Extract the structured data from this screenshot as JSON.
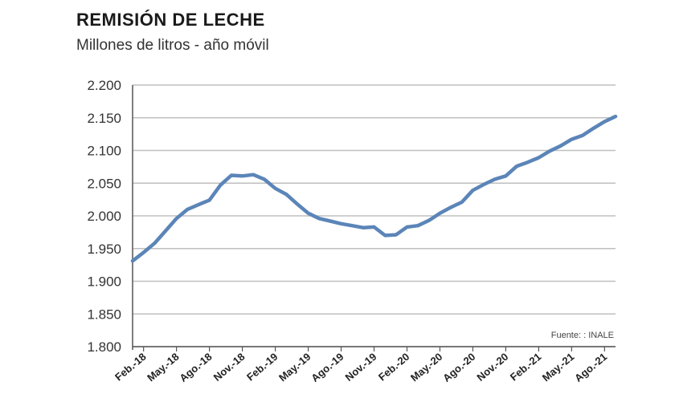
{
  "title": "REMISIÓN DE LECHE",
  "subtitle": "Millones de litros - año móvil",
  "source": "Fuente: : INALE",
  "colors": {
    "line": "#5b85b8",
    "grid": "#bfbfbf",
    "axis": "#555555"
  },
  "chart_data": {
    "type": "line",
    "title": "REMISIÓN DE LECHE",
    "subtitle": "Millones de litros - año móvil",
    "xlabel": "",
    "ylabel": "",
    "ylim": [
      1800,
      2200
    ],
    "yticks": [
      1800,
      1850,
      1900,
      1950,
      2000,
      2050,
      2100,
      2150,
      2200
    ],
    "ytick_labels": [
      "1.800",
      "1.850",
      "1.900",
      "1.950",
      "2.000",
      "2.050",
      "2.100",
      "2.150",
      "2.200"
    ],
    "grid": true,
    "x": [
      "Ene-18",
      "Feb-18",
      "Mar-18",
      "Abr-18",
      "May.-18",
      "Jun-18",
      "Jul-18",
      "Ago.-18",
      "Sep-18",
      "Oct-18",
      "Nov.-18",
      "Dic-18",
      "Ene-19",
      "Feb.-19",
      "Mar-19",
      "Abr-19",
      "May.-19",
      "Jun-19",
      "Jul-19",
      "Ago.-19",
      "Sep-19",
      "Oct-19",
      "Nov.-19",
      "Dic-19",
      "Ene-20",
      "Feb.-20",
      "Mar-20",
      "Abr-20",
      "May.-20",
      "Jun-20",
      "Jul-20",
      "Ago.-20",
      "Sep-20",
      "Oct-20",
      "Nov.-20",
      "Dic-20",
      "Ene-21",
      "Feb.-21",
      "Mar-21",
      "Abr-21",
      "May.-21",
      "Jun-21",
      "Jul-21",
      "Ago.-21",
      "Sep-21"
    ],
    "x_tick_labels": [
      "Feb.-18",
      "May.-18",
      "Ago.-18",
      "Nov.-18",
      "Feb.-19",
      "May.-19",
      "Ago.-19",
      "Nov.-19",
      "Feb.-20",
      "May.-20",
      "Ago.-20",
      "Nov.-20",
      "Feb.-21",
      "May.-21",
      "Ago.-21"
    ],
    "series": [
      {
        "values": [
          1931,
          1944,
          1958,
          1977,
          1996,
          2010,
          2017,
          2024,
          2047,
          2062,
          2061,
          2063,
          2056,
          2042,
          2033,
          2018,
          2004,
          1996,
          1992,
          1988,
          1985,
          1982,
          1983,
          1970,
          1971,
          1983,
          1985,
          1993,
          2004,
          2013,
          2021,
          2039,
          2048,
          2056,
          2061,
          2076,
          2082,
          2089,
          2099,
          2107,
          2117,
          2123,
          2134,
          2144,
          2152
        ]
      }
    ]
  }
}
